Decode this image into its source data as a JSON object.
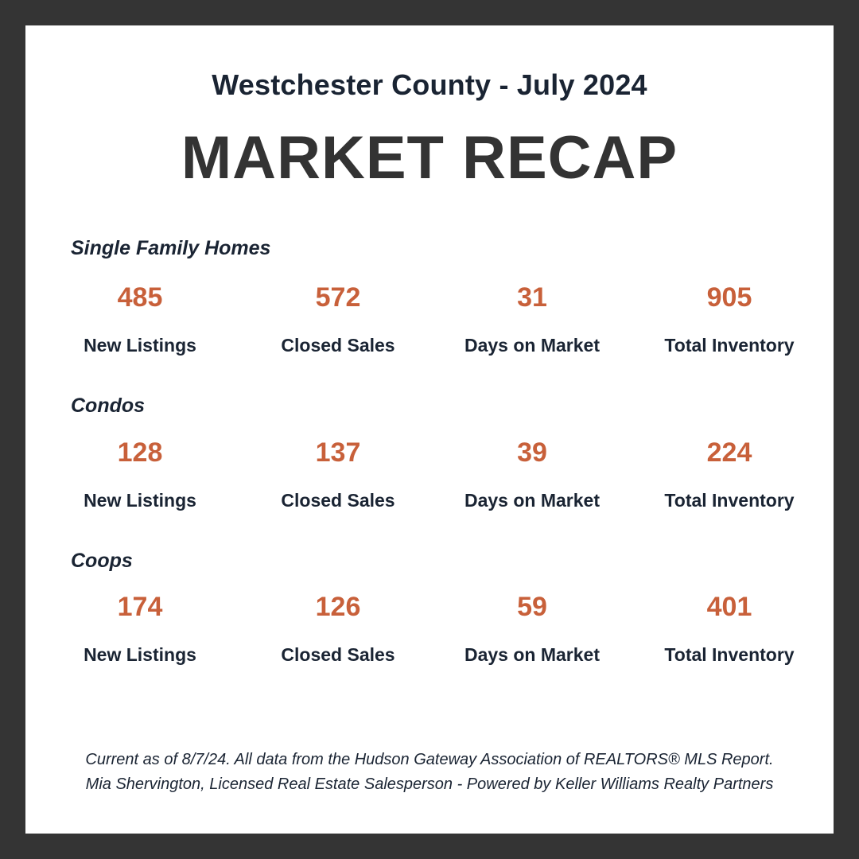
{
  "header": {
    "subtitle": "Westchester County - July 2024",
    "title": "MARKET RECAP"
  },
  "sections": [
    {
      "label": "Single Family Homes",
      "stats": [
        {
          "value": "485",
          "label": "New Listings"
        },
        {
          "value": "572",
          "label": "Closed Sales"
        },
        {
          "value": "31",
          "label": "Days on Market"
        },
        {
          "value": "905",
          "label": "Total Inventory"
        }
      ]
    },
    {
      "label": "Condos",
      "stats": [
        {
          "value": "128",
          "label": "New Listings"
        },
        {
          "value": "137",
          "label": "Closed Sales"
        },
        {
          "value": "39",
          "label": "Days on Market"
        },
        {
          "value": "224",
          "label": "Total Inventory"
        }
      ]
    },
    {
      "label": "Coops",
      "stats": [
        {
          "value": "174",
          "label": "New Listings"
        },
        {
          "value": "126",
          "label": "Closed Sales"
        },
        {
          "value": "59",
          "label": "Days on Market"
        },
        {
          "value": "401",
          "label": "Total Inventory"
        }
      ]
    }
  ],
  "footer": {
    "line1": "Current as of 8/7/24. All data from the Hudson Gateway Association of REALTORS® MLS Report.",
    "line2": "Mia Shervington, Licensed Real Estate Salesperson - Powered by Keller Williams Realty Partners"
  },
  "colors": {
    "frame": "#343434",
    "card": "#ffffff",
    "accent": "#c8603a",
    "text": "#1a2433",
    "title": "#333333"
  }
}
